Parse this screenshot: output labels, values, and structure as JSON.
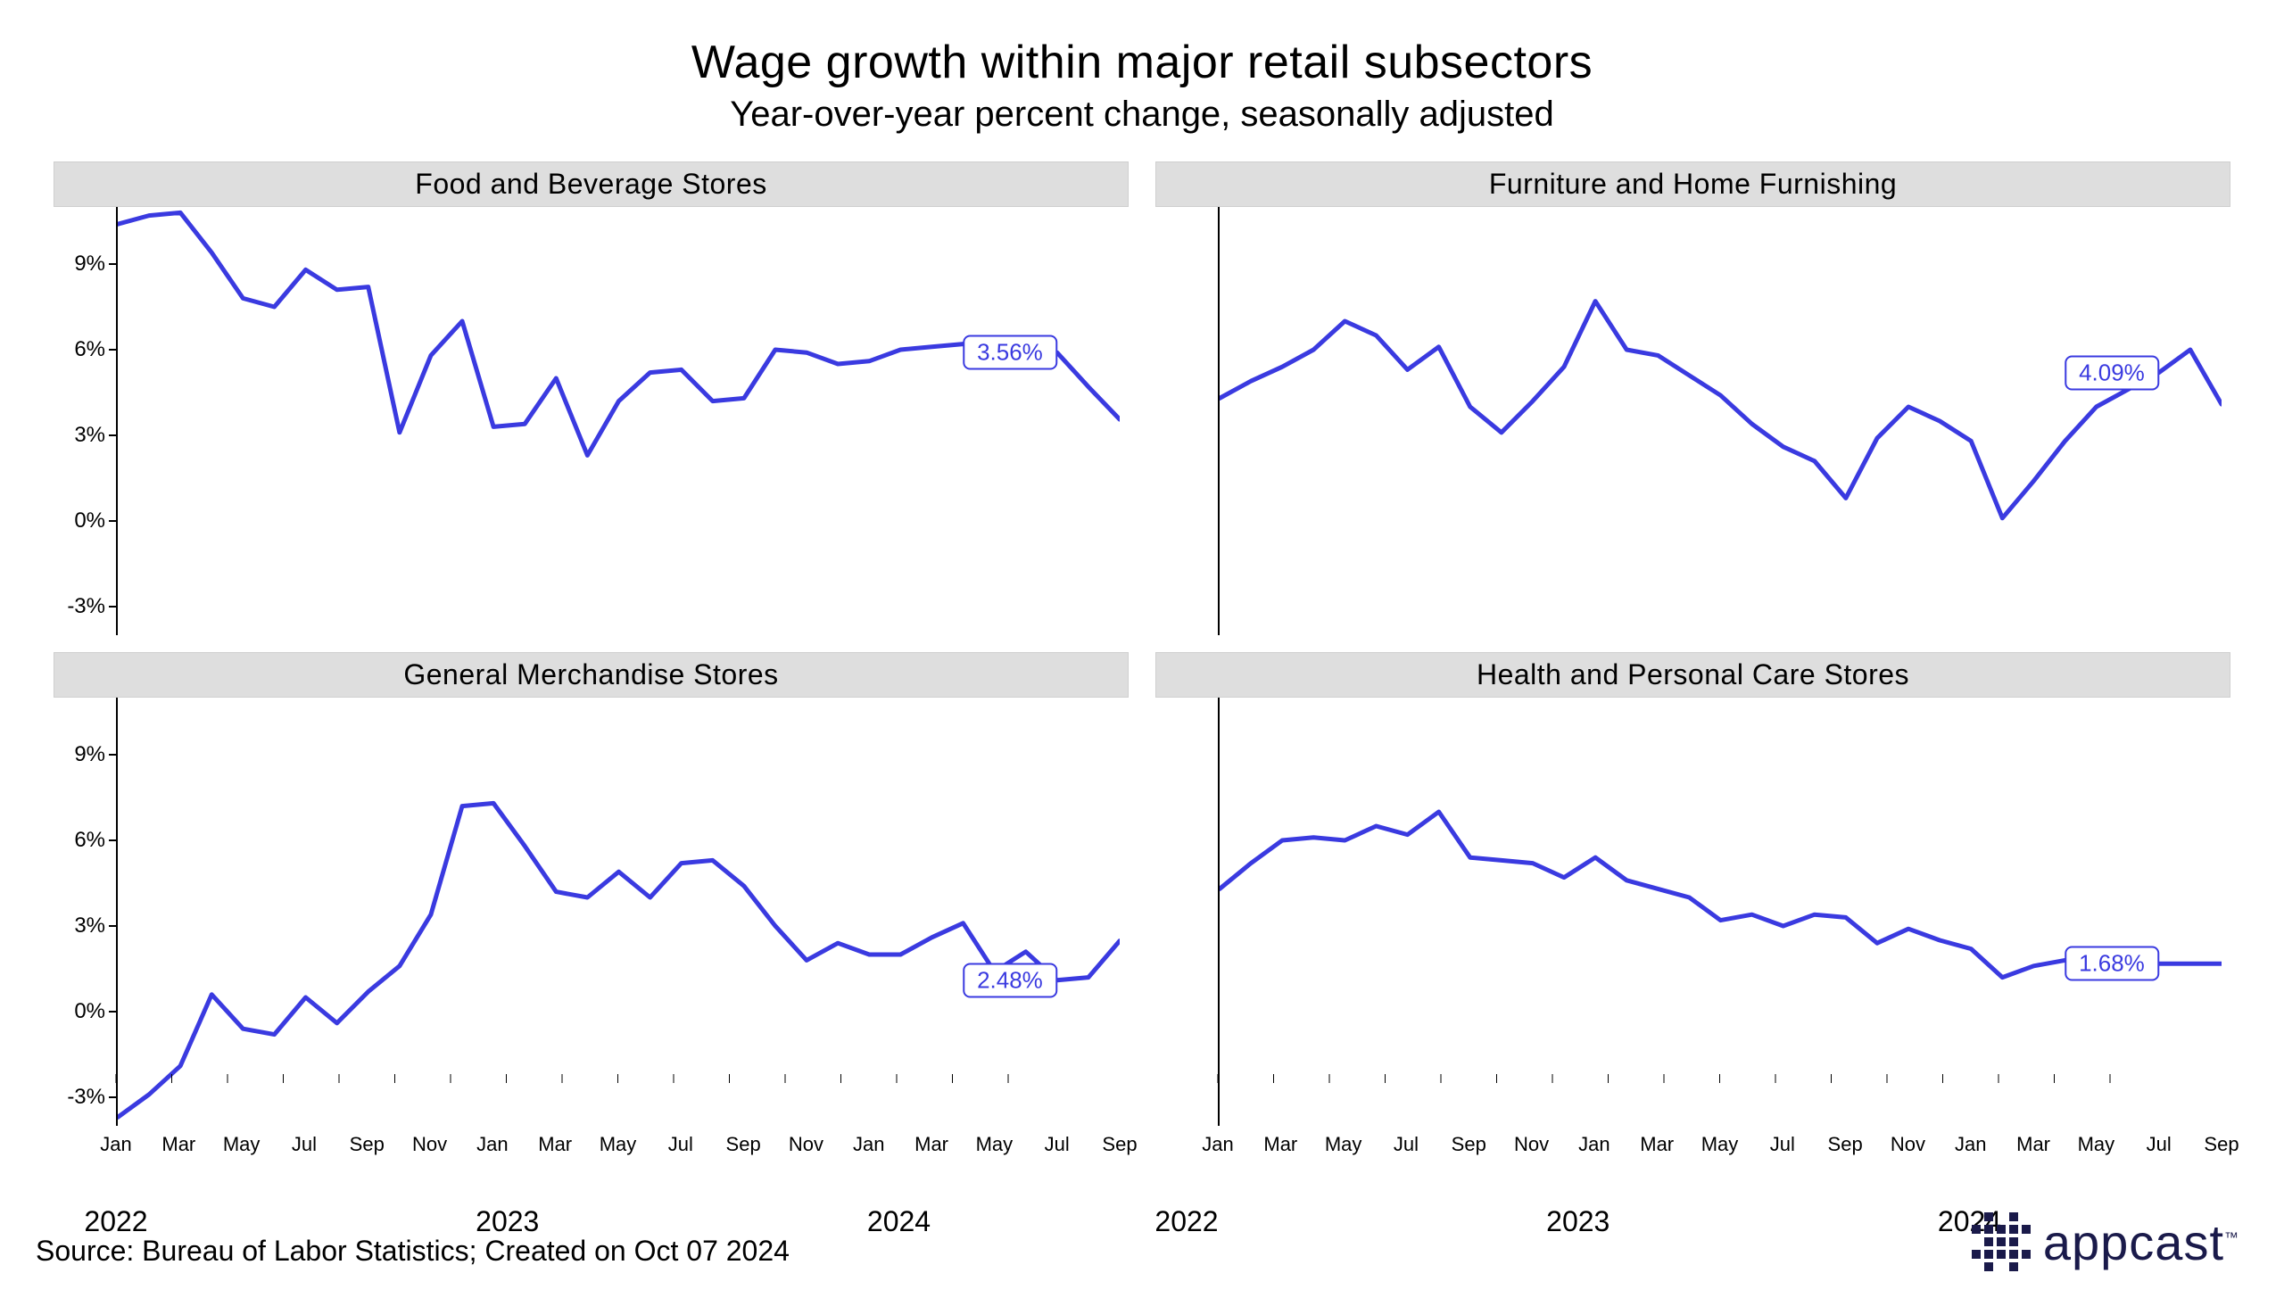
{
  "title": "Wage growth within major retail subsectors",
  "subtitle": "Year-over-year percent change, seasonally adjusted",
  "source_line": "Source: Bureau of Labor Statistics; Created on Oct 07 2024",
  "brand": "appcast",
  "style": {
    "line_color": "#3a3ae0",
    "line_width": 5,
    "panel_header_bg": "#dedede",
    "panel_header_border": "#cfcfcf",
    "axis_color": "#000000",
    "bg": "#ffffff",
    "title_fontsize": 52,
    "subtitle_fontsize": 40,
    "panel_title_fontsize": 32,
    "tick_fontsize": 24,
    "xtick_fontsize": 22,
    "callout_fontsize": 26,
    "y_domain": [
      -4,
      11
    ],
    "y_ticks": [
      -3,
      0,
      3,
      6,
      9
    ],
    "y_tick_labels": [
      "-3%",
      "0%",
      "3%",
      "6%",
      "9%"
    ],
    "x_count": 33,
    "x_tick_every": 2,
    "month_labels": [
      "Jan",
      "Mar",
      "May",
      "Jul",
      "Sep",
      "Nov",
      "Jan",
      "Mar",
      "May",
      "Jul",
      "Sep",
      "Nov",
      "Jan",
      "Mar",
      "May",
      "Jul",
      "Sep"
    ],
    "year_labels": [
      "2022",
      "2023",
      "2024"
    ],
    "year_positions_idx": [
      0,
      12,
      24
    ]
  },
  "panels": [
    {
      "title": "Food and Beverage Stores",
      "callout": "3.56%",
      "callout_at_idx": 30,
      "show_y_ticks": true,
      "show_x_ticks": false,
      "data": [
        10.4,
        10.7,
        10.8,
        9.4,
        7.8,
        7.5,
        8.8,
        8.1,
        8.2,
        3.1,
        5.8,
        7.0,
        3.3,
        3.4,
        5.0,
        2.3,
        4.2,
        5.2,
        5.3,
        4.2,
        4.3,
        6.0,
        5.9,
        5.5,
        5.6,
        6.0,
        6.1,
        6.2,
        6.1,
        6.0,
        5.9,
        4.7,
        3.56
      ]
    },
    {
      "title": "Furniture and Home Furnishing",
      "callout": "4.09%",
      "callout_at_idx": 30,
      "show_y_ticks": false,
      "show_x_ticks": false,
      "data": [
        4.3,
        4.9,
        5.4,
        6.0,
        7.0,
        6.5,
        5.3,
        6.1,
        4.0,
        3.1,
        4.2,
        5.4,
        7.7,
        6.0,
        5.8,
        5.1,
        4.4,
        3.4,
        2.6,
        2.1,
        0.8,
        2.9,
        4.0,
        3.5,
        2.8,
        0.1,
        1.4,
        2.8,
        4.0,
        4.6,
        5.2,
        6.0,
        4.09
      ]
    },
    {
      "title": "General Merchandise Stores",
      "callout": "2.48%",
      "callout_at_idx": 30,
      "show_y_ticks": true,
      "show_x_ticks": true,
      "data": [
        -3.7,
        -2.9,
        -1.9,
        0.6,
        -0.6,
        -0.8,
        0.5,
        -0.4,
        0.7,
        1.6,
        3.4,
        7.2,
        7.3,
        5.8,
        4.2,
        4.0,
        4.9,
        4.0,
        5.2,
        5.3,
        4.4,
        3.0,
        1.8,
        2.4,
        2.0,
        2.0,
        2.6,
        3.1,
        1.4,
        2.1,
        1.1,
        1.2,
        2.48
      ]
    },
    {
      "title": "Health and Personal Care Stores",
      "callout": "1.68%",
      "callout_at_idx": 30,
      "show_y_ticks": false,
      "show_x_ticks": true,
      "data": [
        4.3,
        5.2,
        6.0,
        6.1,
        6.0,
        6.5,
        6.2,
        7.0,
        5.4,
        5.3,
        5.2,
        4.7,
        5.4,
        4.6,
        4.3,
        4.0,
        3.2,
        3.4,
        3.0,
        3.4,
        3.3,
        2.4,
        2.9,
        2.5,
        2.2,
        1.2,
        1.6,
        1.8,
        1.7,
        1.68,
        1.68,
        1.68,
        1.68
      ]
    }
  ]
}
